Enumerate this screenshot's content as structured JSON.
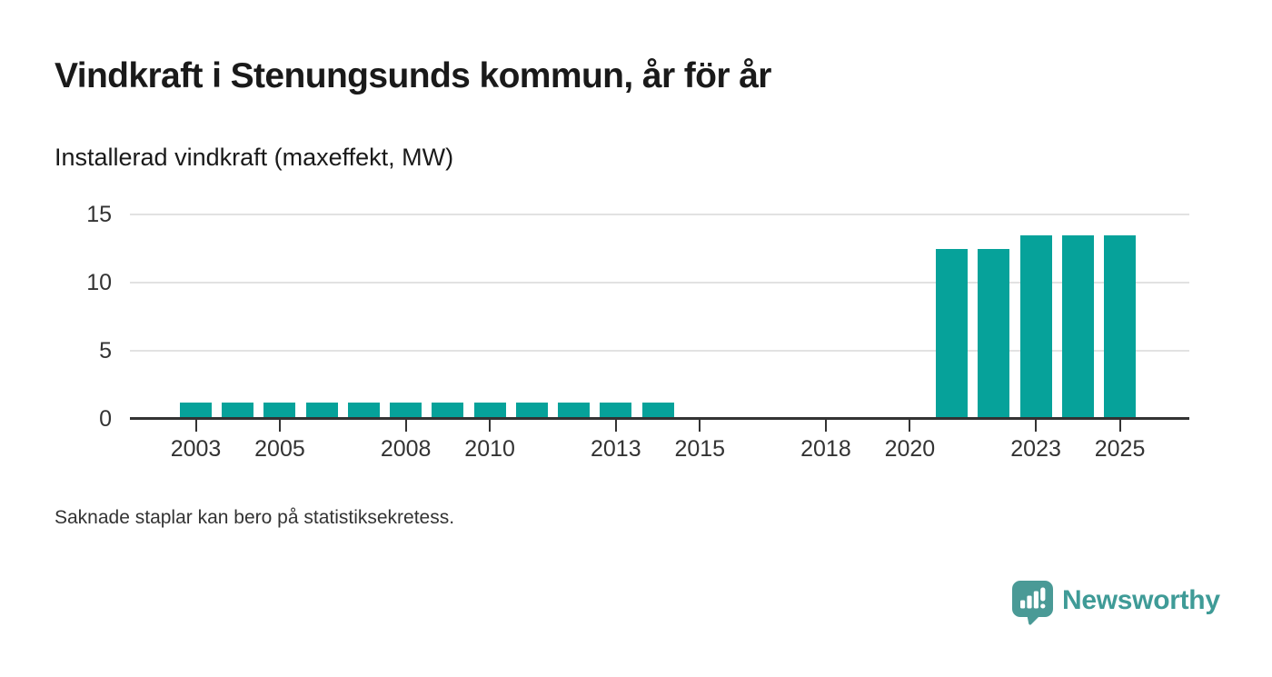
{
  "header": {
    "title": "Vindkraft i Stenungsunds kommun, år för år",
    "subtitle": "Installerad vindkraft (maxeffekt, MW)"
  },
  "footnote": "Saknade staplar kan bero på statistiksekretess.",
  "branding": {
    "logo_text": "Newsworthy",
    "logo_icon": "speech-bubble-with-bar-chart-and-exclamation",
    "logo_icon_color": "#4a9a96",
    "logo_text_color": "#3f9b97"
  },
  "colors": {
    "bar": "#06a29a",
    "axis": "#333333",
    "grid": "#e2e2e2",
    "tick_label": "#333333",
    "background": "#ffffff"
  },
  "chart_data": {
    "type": "bar",
    "title": "Vindkraft i Stenungsunds kommun, år för år",
    "subtitle": "Installerad vindkraft (maxeffekt, MW)",
    "unit": "MW",
    "categories": [
      2003,
      2004,
      2005,
      2006,
      2007,
      2008,
      2009,
      2010,
      2011,
      2012,
      2013,
      2014,
      2015,
      2016,
      2017,
      2018,
      2019,
      2020,
      2021,
      2022,
      2023,
      2024,
      2025
    ],
    "values": [
      1.2,
      1.2,
      1.2,
      1.2,
      1.2,
      1.2,
      1.2,
      1.2,
      1.2,
      1.2,
      1.2,
      1.2,
      null,
      null,
      null,
      null,
      null,
      null,
      12.5,
      12.5,
      13.5,
      13.5,
      13.5
    ],
    "missing_values_note": "Saknade staplar kan bero på statistiksekretess.",
    "x_tick_labels": [
      "2003",
      "2005",
      "2008",
      "2010",
      "2013",
      "2015",
      "2018",
      "2020",
      "2023",
      "2025"
    ],
    "y_ticks": [
      0,
      5,
      10,
      15
    ],
    "ylim": [
      0,
      15
    ],
    "xlabel": "",
    "ylabel": "Installerad vindkraft (maxeffekt, MW)",
    "grid": "horizontal-only",
    "legend": "none",
    "bar_color": "#06a29a"
  }
}
